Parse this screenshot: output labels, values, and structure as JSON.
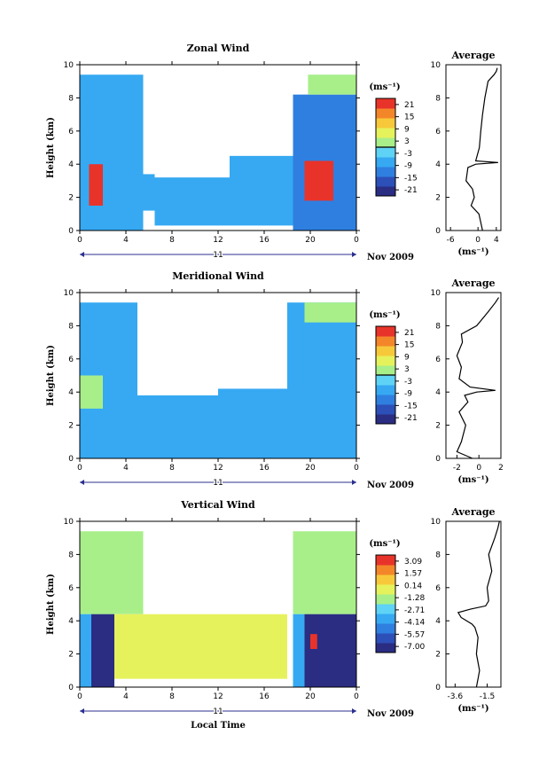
{
  "chart_data": [
    {
      "type": "heatmap",
      "title": "Zonal Wind",
      "ylabel": "Height (km)",
      "xlabel": "",
      "x_ticks": [
        "0",
        "4",
        "8",
        "12",
        "16",
        "20",
        "0"
      ],
      "y_ticks": [
        "0",
        "2",
        "4",
        "6",
        "8",
        "10"
      ],
      "xlim": [
        0,
        24
      ],
      "ylim": [
        0,
        10
      ],
      "date_tick": "11",
      "date_label": "Nov 2009",
      "colorbar": {
        "unit": "(ms⁻¹)",
        "ticks": [
          "21",
          "15",
          "9",
          "3",
          "-3",
          "-9",
          "-15",
          "-21"
        ],
        "range": [
          -24,
          24
        ],
        "marked_level": 0
      },
      "regions": [
        {
          "x": [
            0,
            5.5
          ],
          "y": [
            0,
            9.4
          ],
          "v": -5
        },
        {
          "x": [
            3,
            6.5
          ],
          "y": [
            1.2,
            3.4
          ],
          "v": -6
        },
        {
          "x": [
            6.5,
            13
          ],
          "y": [
            0.3,
            3.2
          ],
          "v": -6
        },
        {
          "x": [
            13,
            19
          ],
          "y": [
            0.3,
            4.5
          ],
          "v": -7
        },
        {
          "x": [
            18.5,
            24
          ],
          "y": [
            0,
            8.2
          ],
          "v": -11
        },
        {
          "x": [
            19.5,
            22
          ],
          "y": [
            1.8,
            4.2
          ],
          "v": 22
        },
        {
          "x": [
            0.8,
            2
          ],
          "y": [
            1.5,
            4
          ],
          "v": 20
        },
        {
          "x": [
            19.8,
            24
          ],
          "y": [
            8.2,
            9.4
          ],
          "v": 3
        }
      ],
      "profile": {
        "title": "Average",
        "xlabel": "(ms⁻¹)",
        "x_ticks": [
          "-6",
          "0",
          "4"
        ],
        "y_ticks": [
          "0",
          "2",
          "4",
          "6",
          "8",
          "10"
        ],
        "xlim": [
          -7,
          5
        ],
        "ylim": [
          0,
          10
        ],
        "x": [
          1.0,
          0.2,
          -1.5,
          -0.8,
          -1.2,
          -2.6,
          -2.2,
          -0.5,
          4.4,
          -0.5,
          0.3,
          0.6,
          1.0,
          1.5,
          2.2,
          3.5,
          4.0,
          4.2
        ],
        "y": [
          0.0,
          1.0,
          1.5,
          2.0,
          2.5,
          3.0,
          3.8,
          4.0,
          4.1,
          4.2,
          5.0,
          6.0,
          7.0,
          8.0,
          9.0,
          9.4,
          9.6,
          9.8
        ]
      }
    },
    {
      "type": "heatmap",
      "title": "Meridional Wind",
      "ylabel": "Height (km)",
      "xlabel": "",
      "x_ticks": [
        "0",
        "4",
        "8",
        "12",
        "16",
        "20",
        "0"
      ],
      "y_ticks": [
        "0",
        "2",
        "4",
        "6",
        "8",
        "10"
      ],
      "xlim": [
        0,
        24
      ],
      "ylim": [
        0,
        10
      ],
      "date_tick": "11",
      "date_label": "Nov 2009",
      "colorbar": {
        "unit": "(ms⁻¹)",
        "ticks": [
          "21",
          "15",
          "9",
          "3",
          "-3",
          "-9",
          "-15",
          "-21"
        ],
        "range": [
          -24,
          24
        ],
        "marked_level": 0
      },
      "regions": [
        {
          "x": [
            0,
            5
          ],
          "y": [
            0,
            9.4
          ],
          "v": -6
        },
        {
          "x": [
            5,
            12
          ],
          "y": [
            0,
            3.8
          ],
          "v": -6
        },
        {
          "x": [
            12,
            18
          ],
          "y": [
            0,
            4.2
          ],
          "v": -5
        },
        {
          "x": [
            18,
            24
          ],
          "y": [
            0,
            9.4
          ],
          "v": -6
        },
        {
          "x": [
            19.5,
            24
          ],
          "y": [
            8.2,
            9.4
          ],
          "v": 3
        },
        {
          "x": [
            0,
            2
          ],
          "y": [
            3,
            5
          ],
          "v": 2
        }
      ],
      "profile": {
        "title": "Average",
        "xlabel": "(ms⁻¹)",
        "x_ticks": [
          "-2",
          "0",
          "2"
        ],
        "y_ticks": [
          "0",
          "2",
          "4",
          "6",
          "8",
          "10"
        ],
        "xlim": [
          -3,
          2
        ],
        "ylim": [
          0,
          10
        ],
        "x": [
          -0.6,
          -2.0,
          -1.6,
          -1.2,
          -1.8,
          -1.0,
          -1.3,
          -0.2,
          1.5,
          -0.8,
          -1.8,
          -1.6,
          -2.0,
          -1.5,
          -1.6,
          -0.2,
          0.8,
          1.5,
          1.8
        ],
        "y": [
          0.0,
          0.4,
          1.0,
          2.0,
          2.8,
          3.4,
          3.8,
          4.0,
          4.1,
          4.3,
          4.8,
          5.5,
          6.2,
          7.0,
          7.5,
          8.0,
          8.8,
          9.4,
          9.7
        ]
      }
    },
    {
      "type": "heatmap",
      "title": "Vertical Wind",
      "ylabel": "Height (km)",
      "xlabel": "Local Time",
      "x_ticks": [
        "0",
        "4",
        "8",
        "12",
        "16",
        "20",
        "0"
      ],
      "y_ticks": [
        "0",
        "2",
        "4",
        "6",
        "8",
        "10"
      ],
      "xlim": [
        0,
        24
      ],
      "ylim": [
        0,
        10
      ],
      "date_tick": "11",
      "date_label": "Nov 2009",
      "colorbar": {
        "unit": "(ms⁻¹)",
        "ticks": [
          "3.09",
          "1.57",
          "0.14",
          "-1.28",
          "-2.71",
          "-4.14",
          "-5.57",
          "-7.00"
        ],
        "range": [
          -7.8,
          3.9
        ],
        "marked_level": null
      },
      "regions": [
        {
          "x": [
            0,
            5.5
          ],
          "y": [
            4.4,
            9.4
          ],
          "v": -1.0
        },
        {
          "x": [
            0,
            1
          ],
          "y": [
            0,
            4.4
          ],
          "v": -4.0
        },
        {
          "x": [
            1,
            3
          ],
          "y": [
            0,
            4.4
          ],
          "v": -7.4
        },
        {
          "x": [
            3,
            18
          ],
          "y": [
            0.5,
            4.4
          ],
          "v": 0.3
        },
        {
          "x": [
            18.5,
            24
          ],
          "y": [
            4.4,
            9.4
          ],
          "v": -1.5
        },
        {
          "x": [
            18.5,
            19.5
          ],
          "y": [
            0,
            4.4
          ],
          "v": -3.5
        },
        {
          "x": [
            19.5,
            24
          ],
          "y": [
            0,
            4.4
          ],
          "v": -7.4
        },
        {
          "x": [
            20,
            20.6
          ],
          "y": [
            2.3,
            3.2
          ],
          "v": 3.5
        }
      ],
      "profile": {
        "title": "Average",
        "xlabel": "(ms⁻¹)",
        "x_ticks": [
          "-3.6",
          "-1.5"
        ],
        "y_ticks": [
          "0",
          "2",
          "4",
          "6",
          "8",
          "10"
        ],
        "xlim": [
          -4.2,
          -0.6
        ],
        "ylim": [
          0,
          10
        ],
        "x": [
          -2.2,
          -2.1,
          -2.0,
          -2.2,
          -2.1,
          -2.3,
          -2.5,
          -3.2,
          -3.4,
          -2.6,
          -1.6,
          -1.4,
          -1.5,
          -1.2,
          -1.4,
          -1.0,
          -0.8,
          -0.7
        ],
        "y": [
          0.0,
          0.5,
          1.0,
          2.0,
          3.0,
          3.6,
          3.8,
          4.2,
          4.5,
          4.7,
          4.9,
          5.2,
          6.0,
          7.0,
          8.0,
          9.0,
          9.6,
          10.0
        ]
      }
    }
  ]
}
